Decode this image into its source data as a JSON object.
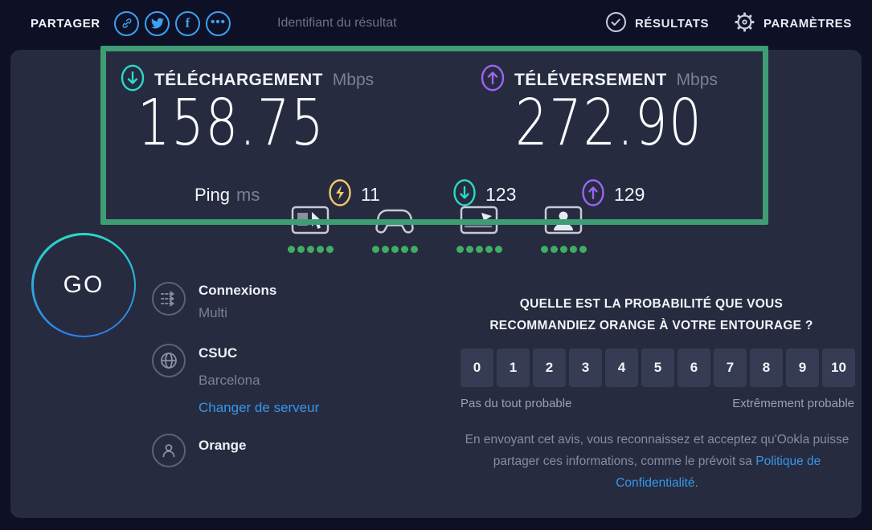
{
  "header": {
    "share_label": "PARTAGER",
    "result_id_label": "Identifiant du résultat",
    "results_label": "RÉSULTATS",
    "settings_label": "PARAMÈTRES"
  },
  "results": {
    "download": {
      "label": "TÉLÉCHARGEMENT",
      "unit": "Mbps",
      "value": "158.75"
    },
    "upload": {
      "label": "TÉLÉVERSEMENT",
      "unit": "Mbps",
      "value": "272.90"
    },
    "ping": {
      "label": "Ping",
      "unit": "ms",
      "idle": "11",
      "download_latency": "123",
      "upload_latency": "129"
    }
  },
  "devices": [
    {
      "name": "browsing",
      "rating_dots": 5
    },
    {
      "name": "gaming",
      "rating_dots": 5
    },
    {
      "name": "streaming",
      "rating_dots": 5
    },
    {
      "name": "video-chat",
      "rating_dots": 5
    }
  ],
  "go_button": {
    "label": "GO"
  },
  "connection": {
    "connections_label": "Connexions",
    "connections_value": "Multi",
    "server_name": "CSUC",
    "server_location": "Barcelona",
    "change_server_label": "Changer de serveur",
    "isp_name": "Orange"
  },
  "survey": {
    "question_line1": "QUELLE EST LA PROBABILITÉ QUE VOUS",
    "question_line2": "RECOMMANDIEZ ORANGE À VOTRE ENTOURAGE ?",
    "ratings": [
      "0",
      "1",
      "2",
      "3",
      "4",
      "5",
      "6",
      "7",
      "8",
      "9",
      "10"
    ],
    "low_label": "Pas du tout probable",
    "high_label": "Extrêmement probable",
    "disclaimer_text": "En envoyant cet avis, vous reconnaissez et acceptez qu'Ookla puisse partager ces informations, comme le prévoit sa ",
    "privacy_link_label": "Politique de Confidentialité",
    "disclaimer_suffix": "."
  },
  "colors": {
    "background": "#0e1126",
    "panel": "#272b40",
    "annotation_green": "#3e9d74",
    "download_teal": "#2bd9c7",
    "upload_purple": "#9c64f4",
    "idle_yellow": "#efc96a",
    "link_blue": "#3597ea",
    "share_blue": "#3da0f2",
    "rating_dot_green": "#3fae62"
  }
}
